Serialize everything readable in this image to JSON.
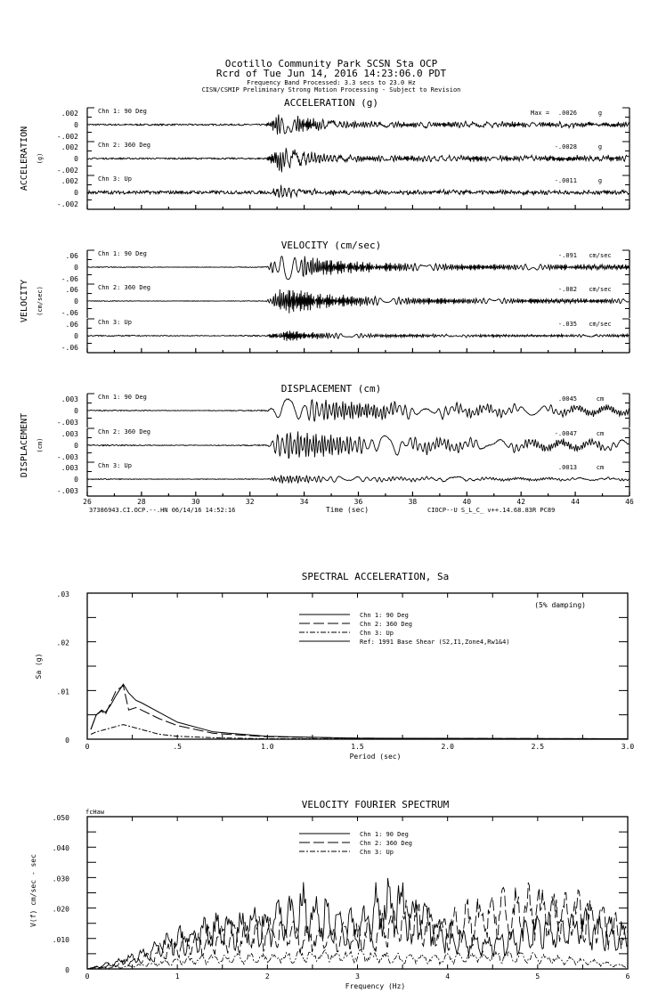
{
  "header": {
    "line1": "Ocotillo Community Park    SCSN Sta OCP",
    "line2": "Rcrd of Tue Jun 14, 2016 14:23:06.0 PDT",
    "line3": "Frequency Band Processed: 3.3 secs to 23.0 Hz",
    "line4": "CISN/CSMIP Preliminary Strong Motion Processing - Subject to Revision"
  },
  "chart_data": [
    {
      "type": "line",
      "title": "ACCELERATION (g)",
      "ylabel": "ACCELERATION",
      "yunit": "(g)",
      "ytick_labels": [
        ".002",
        "0",
        "-.002"
      ],
      "max_prefix": "Max =",
      "series": [
        {
          "name": "Chn 1: 90 Deg",
          "max": ".0026",
          "unit": "g"
        },
        {
          "name": "Chn 2: 360 Deg",
          "max": "-.0028",
          "unit": "g"
        },
        {
          "name": "Chn 3: Up",
          "max": "-.0011",
          "unit": "g"
        }
      ]
    },
    {
      "type": "line",
      "title": "VELOCITY (cm/sec)",
      "ylabel": "VELOCITY",
      "yunit": "(cm/sec)",
      "ytick_labels": [
        ".06",
        "0",
        "-.06"
      ],
      "series": [
        {
          "name": "Chn 1: 90 Deg",
          "max": "-.091",
          "unit": "cm/sec"
        },
        {
          "name": "Chn 2: 360 Deg",
          "max": "-.082",
          "unit": "cm/sec"
        },
        {
          "name": "Chn 3: Up",
          "max": "-.035",
          "unit": "cm/sec"
        }
      ]
    },
    {
      "type": "line",
      "title": "DISPLACEMENT (cm)",
      "ylabel": "DISPLACEMENT",
      "yunit": "(cm)",
      "ytick_labels": [
        ".003",
        "0",
        "-.003"
      ],
      "xlabel": "Time (sec)",
      "xlim": [
        26,
        46
      ],
      "xtick_labels": [
        "26",
        "28",
        "30",
        "32",
        "34",
        "36",
        "38",
        "40",
        "42",
        "44",
        "46"
      ],
      "footer_left": "37386943.CI.OCP.--.HN 06/14/16 14:52:16",
      "footer_right": "CIOCP--U  S_L_C_  v++.14.68.83R PC89",
      "series": [
        {
          "name": "Chn 1: 90 Deg",
          "max": ".0045",
          "unit": "cm"
        },
        {
          "name": "Chn 2: 360 Deg",
          "max": "-.0047",
          "unit": "cm"
        },
        {
          "name": "Chn 3: Up",
          "max": ".0013",
          "unit": "cm"
        }
      ]
    },
    {
      "type": "line",
      "title": "SPECTRAL ACCELERATION, Sa",
      "annotation": "(5% damping)",
      "xlabel": "Period (sec)",
      "ylabel": "Sa (g)",
      "xlim": [
        0,
        3.0
      ],
      "ylim": [
        0,
        0.03
      ],
      "xtick_labels": [
        "0",
        ".5",
        "1.0",
        "1.5",
        "2.0",
        "2.5",
        "3.0"
      ],
      "ytick_labels": [
        ".03",
        ".02",
        ".01",
        "0"
      ],
      "legend": "top-center",
      "series": [
        {
          "name": "Chn 1: 90 Deg",
          "style": "solid",
          "x": [
            0.02,
            0.05,
            0.08,
            0.1,
            0.13,
            0.16,
            0.2,
            0.23,
            0.27,
            0.3,
            0.4,
            0.5,
            0.7,
            1.0,
            1.5,
            3.0
          ],
          "y": [
            0.002,
            0.005,
            0.006,
            0.0055,
            0.007,
            0.009,
            0.0113,
            0.0095,
            0.008,
            0.0075,
            0.0055,
            0.0035,
            0.0015,
            0.0006,
            0.0002,
            0.0001
          ]
        },
        {
          "name": "Chn 2: 360 Deg",
          "style": "dashed",
          "x": [
            0.02,
            0.05,
            0.08,
            0.1,
            0.13,
            0.16,
            0.2,
            0.23,
            0.27,
            0.3,
            0.4,
            0.5,
            0.7,
            1.0,
            1.5,
            3.0
          ],
          "y": [
            0.002,
            0.005,
            0.0058,
            0.005,
            0.0075,
            0.01,
            0.011,
            0.006,
            0.0065,
            0.006,
            0.0042,
            0.0028,
            0.0012,
            0.0005,
            0.0002,
            0.0001
          ]
        },
        {
          "name": "Chn 3: Up",
          "style": "dash-dot",
          "x": [
            0.02,
            0.05,
            0.1,
            0.15,
            0.2,
            0.25,
            0.3,
            0.4,
            0.5,
            0.7,
            1.0,
            3.0
          ],
          "y": [
            0.001,
            0.0015,
            0.002,
            0.0025,
            0.003,
            0.0025,
            0.002,
            0.001,
            0.0006,
            0.0003,
            0.0001,
            0.0
          ]
        },
        {
          "name": "Ref: 1991 Base Shear (S2,I1,Zone4,Rw1&4)",
          "style": "solid",
          "x": [],
          "y": []
        }
      ]
    },
    {
      "type": "line",
      "title": "VELOCITY FOURIER SPECTRUM",
      "corner_label": "fcHaw",
      "xlabel": "Frequency (Hz)",
      "ylabel": "V(f)   cm/sec - sec",
      "xlim": [
        0,
        6
      ],
      "ylim": [
        0,
        0.05
      ],
      "xtick_labels": [
        "0",
        "1",
        "2",
        "3",
        "4",
        "5",
        "6"
      ],
      "ytick_labels": [
        ".050",
        ".040",
        ".030",
        ".020",
        ".010",
        "0"
      ],
      "legend": "top-center",
      "series": [
        {
          "name": "Chn 1: 90 Deg",
          "style": "solid",
          "x": [
            0,
            0.5,
            1,
            1.5,
            2,
            2.4,
            3,
            3.2,
            3.5,
            4,
            4.5,
            5,
            5.5,
            6
          ],
          "y": [
            0,
            0.004,
            0.011,
            0.015,
            0.017,
            0.022,
            0.015,
            0.022,
            0.025,
            0.012,
            0.009,
            0.014,
            0.016,
            0.012
          ]
        },
        {
          "name": "Chn 2: 360 Deg",
          "style": "dashed",
          "x": [
            0,
            0.5,
            1,
            1.5,
            2,
            2.5,
            3,
            3.5,
            4,
            4.5,
            5,
            5.5,
            6
          ],
          "y": [
            0,
            0.003,
            0.009,
            0.012,
            0.014,
            0.012,
            0.012,
            0.018,
            0.015,
            0.021,
            0.022,
            0.02,
            0.013
          ]
        },
        {
          "name": "Chn 3: Up",
          "style": "dash-dot",
          "x": [
            0,
            0.5,
            1,
            1.5,
            2,
            2.5,
            3,
            3.5,
            4,
            4.5,
            5,
            5.5,
            6
          ],
          "y": [
            0,
            0.001,
            0.003,
            0.004,
            0.004,
            0.005,
            0.005,
            0.004,
            0.004,
            0.005,
            0.004,
            0.003,
            0.001
          ]
        }
      ]
    }
  ]
}
